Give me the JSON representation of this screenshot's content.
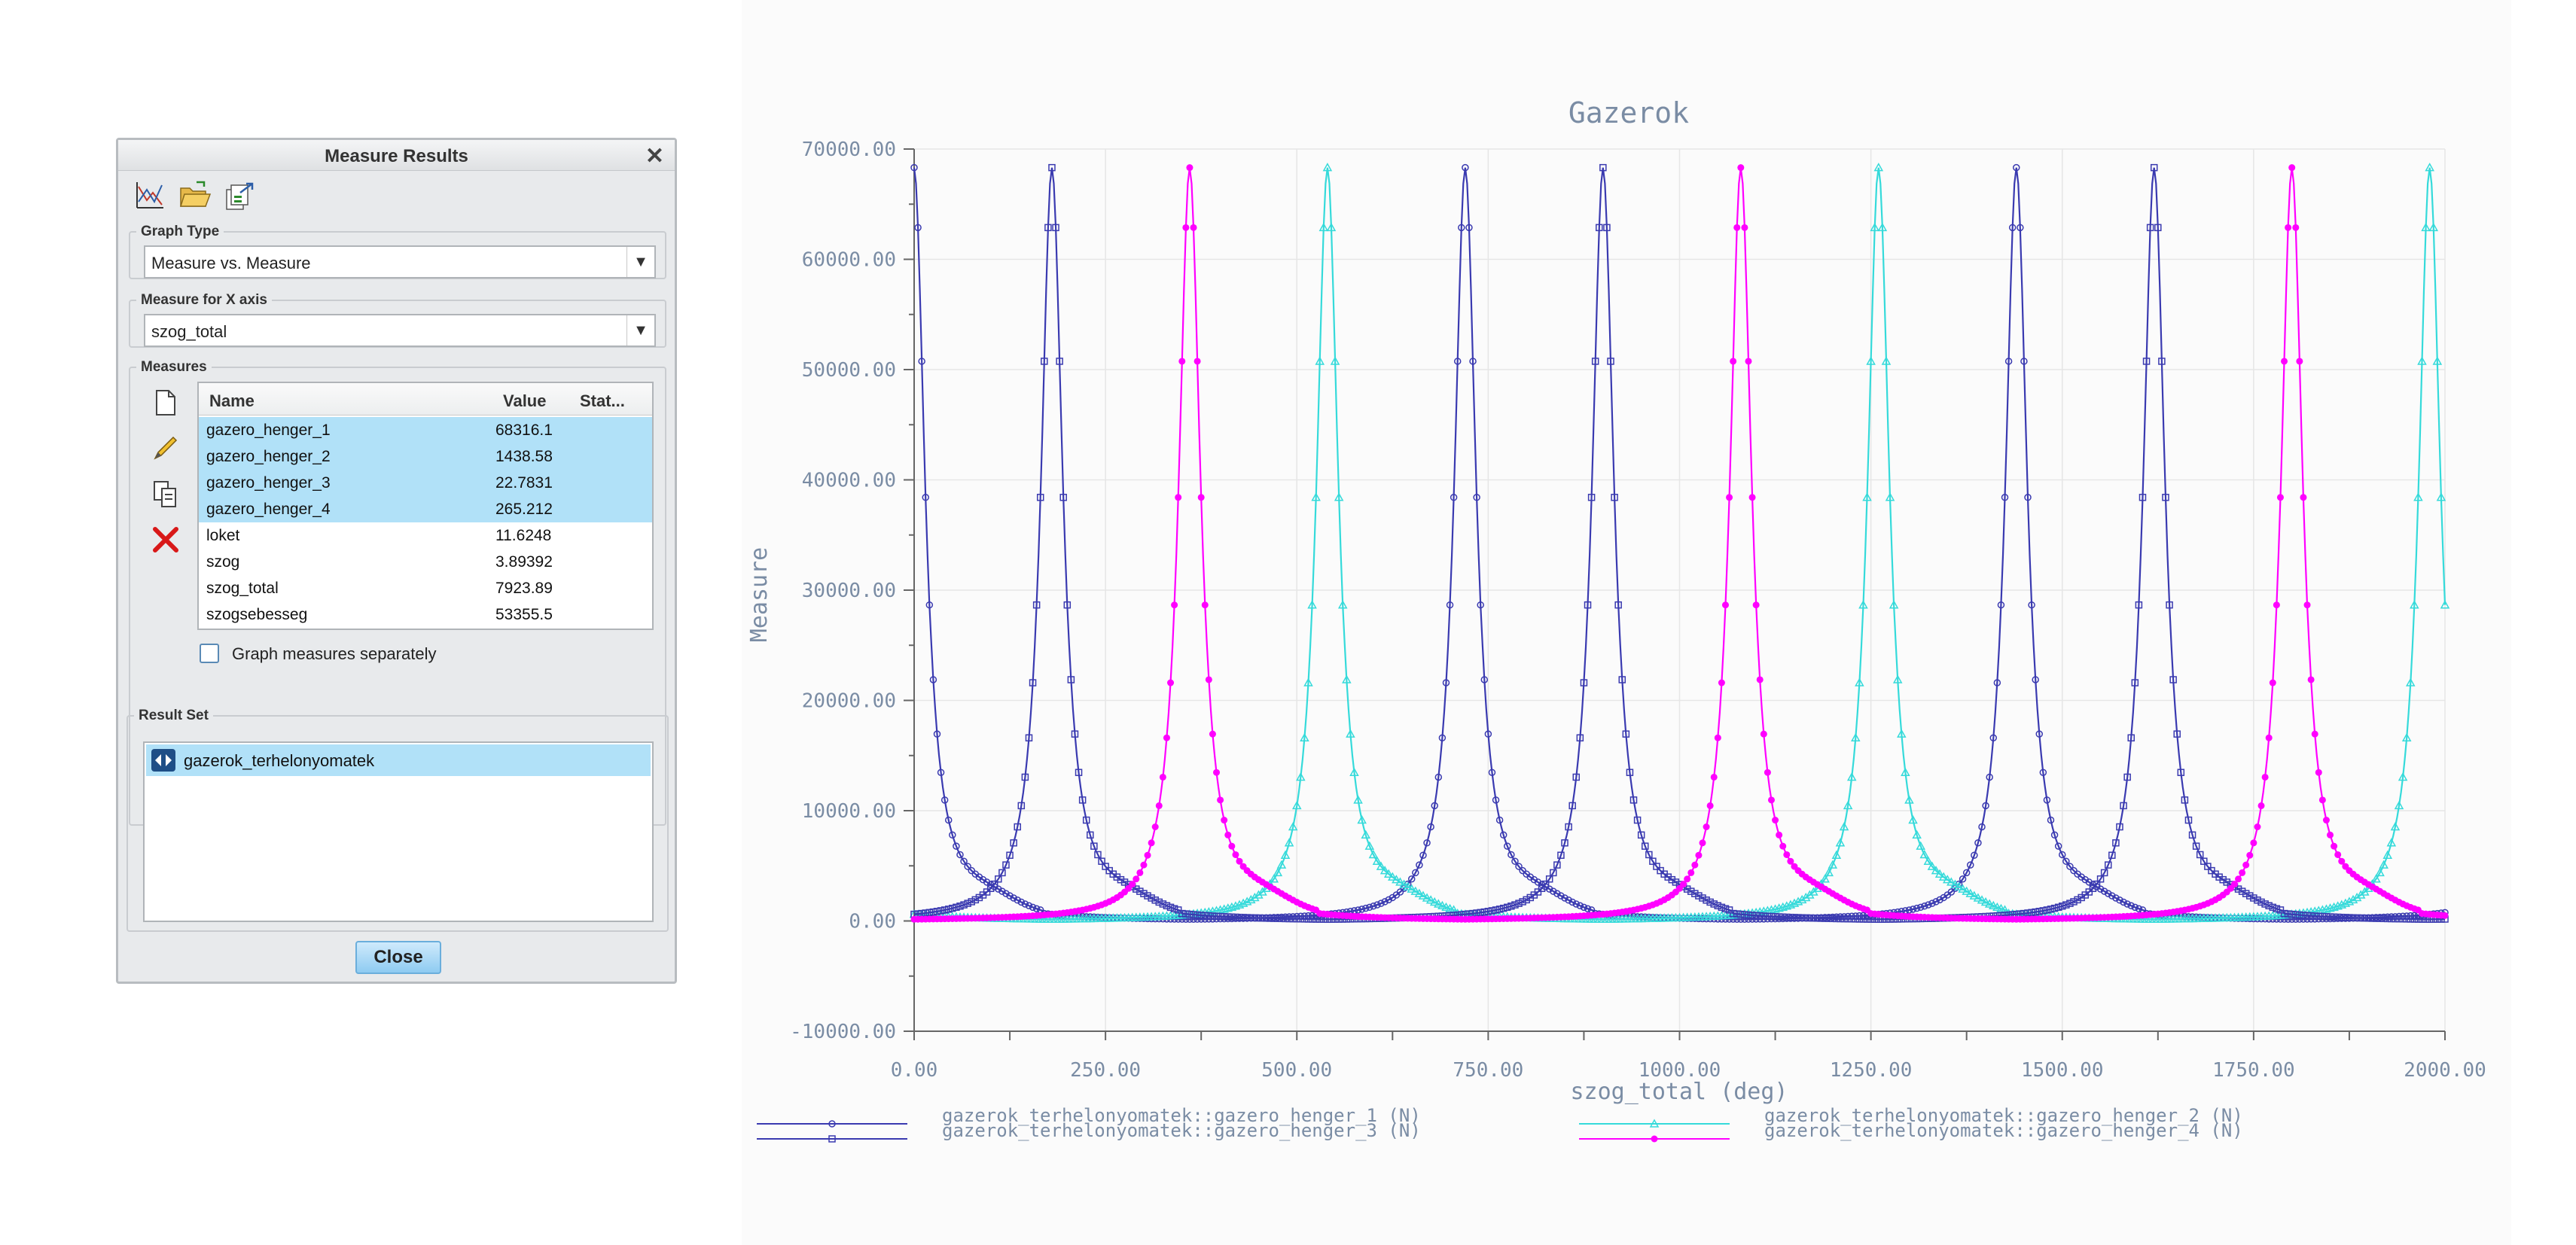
{
  "dialog": {
    "title": "Measure Results",
    "close_glyph": "✕",
    "toolbar_icons": [
      "graph-icon",
      "open-folder-icon",
      "export-icon"
    ],
    "graph_type": {
      "legend": "Graph Type",
      "value": "Measure vs. Measure"
    },
    "x_axis": {
      "legend": "Measure for X axis",
      "value": "szog_total"
    },
    "measures": {
      "legend": "Measures",
      "columns": [
        "Name",
        "Value",
        "Stat..."
      ],
      "rows": [
        {
          "name": "gazero_henger_1",
          "value": "68316.1",
          "selected": true
        },
        {
          "name": "gazero_henger_2",
          "value": "1438.58",
          "selected": true
        },
        {
          "name": "gazero_henger_3",
          "value": "22.7831",
          "selected": true
        },
        {
          "name": "gazero_henger_4",
          "value": "265.212",
          "selected": true
        },
        {
          "name": "loket",
          "value": "11.6248",
          "selected": false
        },
        {
          "name": "szog",
          "value": "3.89392",
          "selected": false
        },
        {
          "name": "szog_total",
          "value": "7923.89",
          "selected": false
        },
        {
          "name": "szogsebesseg",
          "value": "53355.5",
          "selected": false
        }
      ],
      "side_icons": [
        "new-icon",
        "edit-icon",
        "copy-icon",
        "delete-icon"
      ],
      "graph_separately_label": "Graph measures separately",
      "graph_separately_checked": false
    },
    "result_set": {
      "legend": "Result Set",
      "item": "gazerok_terhelonyomatek"
    },
    "close_button": "Close"
  },
  "chart_data": {
    "type": "line",
    "title": "Gazerok",
    "xlabel": "szog_total (deg)",
    "ylabel": "Measure",
    "xlim": [
      0,
      2000
    ],
    "ylim": [
      -10000,
      70000
    ],
    "x_ticks": [
      "0.00",
      "250.00",
      "500.00",
      "750.00",
      "1000.00",
      "1250.00",
      "1500.00",
      "1750.00",
      "2000.00"
    ],
    "y_ticks": [
      "70000.00",
      "60000.00",
      "50000.00",
      "40000.00",
      "30000.00",
      "20000.00",
      "10000.00",
      "0.00",
      "-10000.00"
    ],
    "grid": true,
    "legend_position": "bottom",
    "peak_value": 68316.1,
    "series": [
      {
        "name": "gazerok_terhelonyomatek::gazero_henger_1 (N)",
        "color": "#3a3ab0",
        "marker": "circle",
        "peaks_x": [
          0,
          720,
          1440
        ]
      },
      {
        "name": "gazerok_terhelonyomatek::gazero_henger_2 (N)",
        "color": "#35dada",
        "marker": "triangle",
        "peaks_x": [
          540,
          1260,
          1980
        ]
      },
      {
        "name": "gazerok_terhelonyomatek::gazero_henger_3 (N)",
        "color": "#3a3ab0",
        "marker": "square",
        "peaks_x": [
          180,
          900,
          1620
        ]
      },
      {
        "name": "gazerok_terhelonyomatek::gazero_henger_4 (N)",
        "color": "#ff00ff",
        "marker": "dot",
        "peaks_x": [
          360,
          1080,
          1800
        ]
      }
    ]
  }
}
